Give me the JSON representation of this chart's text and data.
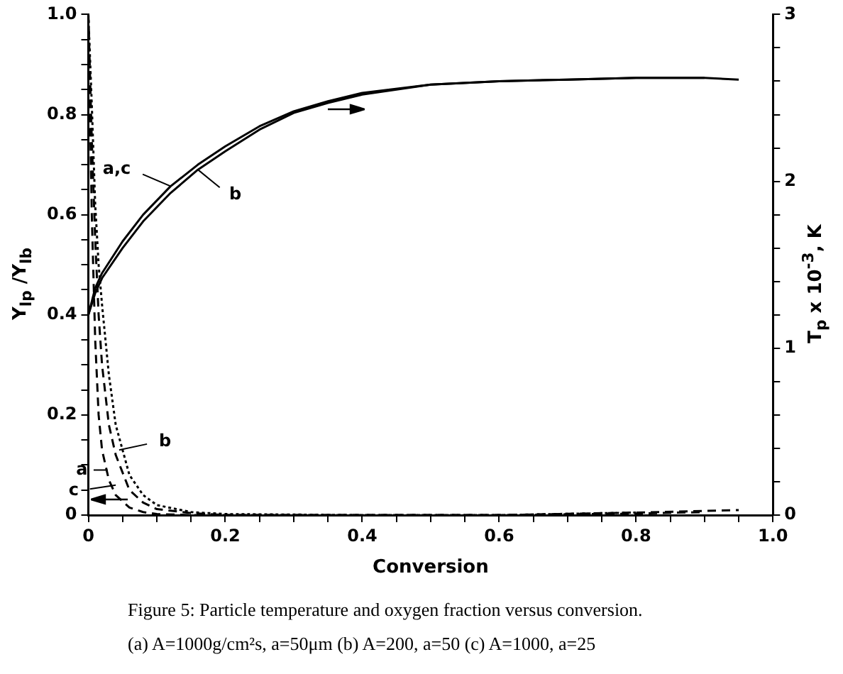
{
  "chart_data": {
    "type": "line",
    "xlabel": "Conversion",
    "ylabel": "Y$_{lp}$ /Y$_{lb}$",
    "y2label": "T$_{p}$ x 10$^{-3}$, K",
    "xlim": [
      0,
      1
    ],
    "ylim": [
      0,
      1
    ],
    "y2lim": [
      0,
      3
    ],
    "xticks": [
      {
        "value": 0,
        "label": "0"
      },
      {
        "value": 0.05,
        "label": null
      },
      {
        "value": 0.1,
        "label": null
      },
      {
        "value": 0.15,
        "label": null
      },
      {
        "value": 0.2,
        "label": "0.2"
      },
      {
        "value": 0.25,
        "label": null
      },
      {
        "value": 0.3,
        "label": null
      },
      {
        "value": 0.35,
        "label": null
      },
      {
        "value": 0.4,
        "label": "0.4"
      },
      {
        "value": 0.45,
        "label": null
      },
      {
        "value": 0.5,
        "label": null
      },
      {
        "value": 0.55,
        "label": null
      },
      {
        "value": 0.6,
        "label": "0.6"
      },
      {
        "value": 0.65,
        "label": null
      },
      {
        "value": 0.7,
        "label": null
      },
      {
        "value": 0.75,
        "label": null
      },
      {
        "value": 0.8,
        "label": "0.8"
      },
      {
        "value": 0.85,
        "label": null
      },
      {
        "value": 0.9,
        "label": null
      },
      {
        "value": 0.95,
        "label": null
      },
      {
        "value": 1,
        "label": "1.0"
      }
    ],
    "yticks": [
      {
        "value": 0,
        "label": "0"
      },
      {
        "value": 0.05,
        "label": null
      },
      {
        "value": 0.1,
        "label": null
      },
      {
        "value": 0.15,
        "label": null
      },
      {
        "value": 0.2,
        "label": "0.2"
      },
      {
        "value": 0.25,
        "label": null
      },
      {
        "value": 0.3,
        "label": null
      },
      {
        "value": 0.35,
        "label": null
      },
      {
        "value": 0.4,
        "label": "0.4"
      },
      {
        "value": 0.45,
        "label": null
      },
      {
        "value": 0.5,
        "label": null
      },
      {
        "value": 0.55,
        "label": null
      },
      {
        "value": 0.6,
        "label": "0.6"
      },
      {
        "value": 0.65,
        "label": null
      },
      {
        "value": 0.7,
        "label": null
      },
      {
        "value": 0.75,
        "label": null
      },
      {
        "value": 0.8,
        "label": "0.8"
      },
      {
        "value": 0.85,
        "label": null
      },
      {
        "value": 0.9,
        "label": null
      },
      {
        "value": 0.95,
        "label": null
      },
      {
        "value": 1,
        "label": "1.0"
      }
    ],
    "y2ticks": [
      0,
      {
        "value": 0.2,
        "label": null
      },
      {
        "value": 0.4,
        "label": null
      },
      {
        "value": 0.6,
        "label": null
      },
      {
        "value": 0.8,
        "label": null
      },
      1,
      {
        "value": 1.2,
        "label": null
      },
      {
        "value": 1.4,
        "label": null
      },
      {
        "value": 1.6,
        "label": null
      },
      {
        "value": 1.8,
        "label": null
      },
      2,
      {
        "value": 2.2,
        "label": null
      },
      {
        "value": 2.4,
        "label": null
      },
      {
        "value": 2.6,
        "label": null
      },
      {
        "value": 2.8,
        "label": null
      },
      3
    ],
    "grid": false,
    "legend": false,
    "marker": "none",
    "series": [
      {
        "axis": "y2",
        "color": "#000000",
        "line_style": "solid",
        "x": [
          0,
          0.01,
          0.02,
          0.05,
          0.08,
          0.12,
          0.16,
          0.2,
          0.25,
          0.3,
          0.35,
          0.4,
          0.5,
          0.6,
          0.7,
          0.8,
          0.9,
          0.95
        ],
        "values": [
          1.2,
          1.36,
          1.45,
          1.64,
          1.8,
          1.97,
          2.1,
          2.21,
          2.33,
          2.42,
          2.48,
          2.53,
          2.58,
          2.6,
          2.61,
          2.62,
          2.62,
          2.61
        ]
      },
      {
        "axis": "y2",
        "color": "#000000",
        "line_style": "solid",
        "x": [
          0,
          0.01,
          0.02,
          0.05,
          0.08,
          0.12,
          0.16,
          0.2,
          0.25,
          0.3,
          0.35,
          0.4,
          0.5,
          0.6,
          0.7,
          0.8,
          0.9
        ],
        "values": [
          1.2,
          1.33,
          1.42,
          1.6,
          1.76,
          1.93,
          2.07,
          2.18,
          2.31,
          2.41,
          2.47,
          2.52,
          2.58,
          2.6,
          2.61,
          2.62,
          2.62
        ]
      },
      {
        "color": "#000000",
        "line_style": "dashed",
        "x": [
          0,
          0.005,
          0.01,
          0.015,
          0.02,
          0.03,
          0.04,
          0.06,
          0.08,
          0.1,
          0.15,
          0.2,
          0.4,
          0.6,
          0.8,
          0.95
        ],
        "values": [
          1.0,
          0.75,
          0.55,
          0.4,
          0.3,
          0.18,
          0.12,
          0.05,
          0.025,
          0.012,
          0.004,
          0,
          0,
          0,
          0.005,
          0.01
        ]
      },
      {
        "color": "#000000",
        "line_style": "dotted",
        "x": [
          0,
          0.005,
          0.01,
          0.015,
          0.02,
          0.03,
          0.04,
          0.06,
          0.08,
          0.1,
          0.15,
          0.2,
          0.4,
          0.6,
          0.8
        ],
        "values": [
          1.0,
          0.82,
          0.62,
          0.5,
          0.42,
          0.28,
          0.18,
          0.08,
          0.04,
          0.02,
          0.006,
          0.002,
          0,
          0,
          0.005
        ]
      },
      {
        "color": "#000000",
        "line_style": "dashed",
        "x": [
          0,
          0.005,
          0.01,
          0.015,
          0.02,
          0.03,
          0.04,
          0.06,
          0.08,
          0.1,
          0.15,
          0.2,
          0.4,
          0.6,
          0.8,
          0.9
        ],
        "values": [
          1.0,
          0.6,
          0.35,
          0.2,
          0.13,
          0.07,
          0.04,
          0.015,
          0.006,
          0.002,
          0,
          0,
          0,
          0,
          0.003,
          0.006
        ]
      }
    ],
    "annotations": [
      {
        "text": "a,c",
        "x": 0.12,
        "y": 0.657
      },
      {
        "text": "b",
        "x": 0.16,
        "y": 0.69
      },
      {
        "text": "b",
        "x": 0.045,
        "y": 0.13
      },
      {
        "text": "a",
        "x": 0.028,
        "y": 0.09
      },
      {
        "text": "c",
        "x": 0.04,
        "y": 0.06
      },
      "Figure 5: Particle temperature and oxygen fraction versus conversion.",
      "(a) A=1000g/cm²s, a=50μm (b) A=200, a=50 (c) A=1000, a=25"
    ]
  }
}
